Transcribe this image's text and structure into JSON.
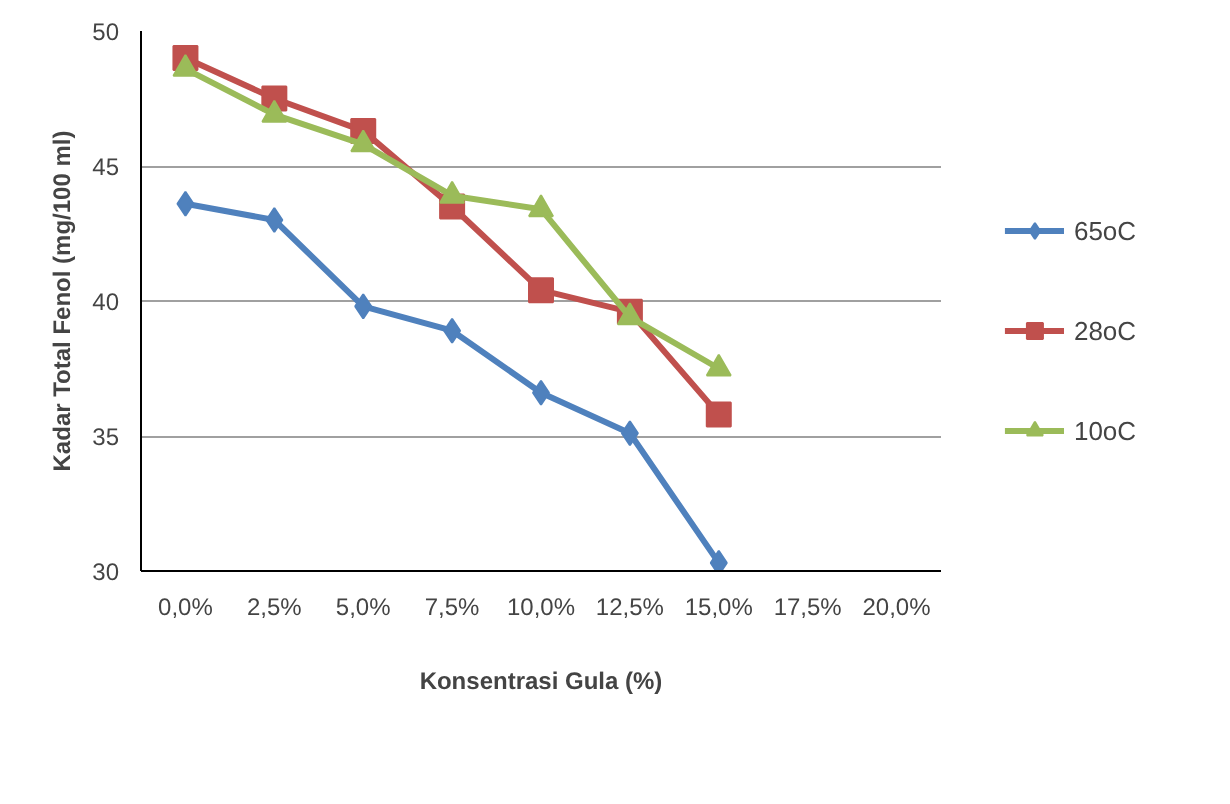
{
  "chart_data": {
    "type": "line",
    "xlabel": "Konsentrasi Gula (%)",
    "ylabel": "Kadar Total Fenol (mg/100 ml)",
    "categories": [
      "0,0%",
      "2,5%",
      "5,0%",
      "7,5%",
      "10,0%",
      "12,5%",
      "15,0%",
      "17,5%",
      "20,0%"
    ],
    "series": [
      {
        "name": "65oC",
        "color": "#4f81bd",
        "marker": "diamond",
        "values": [
          43.6,
          43.0,
          39.8,
          38.9,
          36.6,
          35.1,
          30.3,
          null,
          null
        ]
      },
      {
        "name": "28oC",
        "color": "#c0504d",
        "marker": "square",
        "values": [
          49.0,
          47.5,
          46.3,
          43.5,
          40.4,
          39.6,
          35.8,
          null,
          null
        ]
      },
      {
        "name": "10oC",
        "color": "#9bbb59",
        "marker": "triangle",
        "values": [
          48.6,
          46.9,
          45.8,
          43.9,
          43.4,
          39.4,
          37.5,
          null,
          null
        ]
      }
    ],
    "ylim": [
      30,
      50
    ],
    "yticks": [
      30,
      35,
      40,
      45,
      50
    ],
    "grid": "y",
    "legend": "right"
  }
}
